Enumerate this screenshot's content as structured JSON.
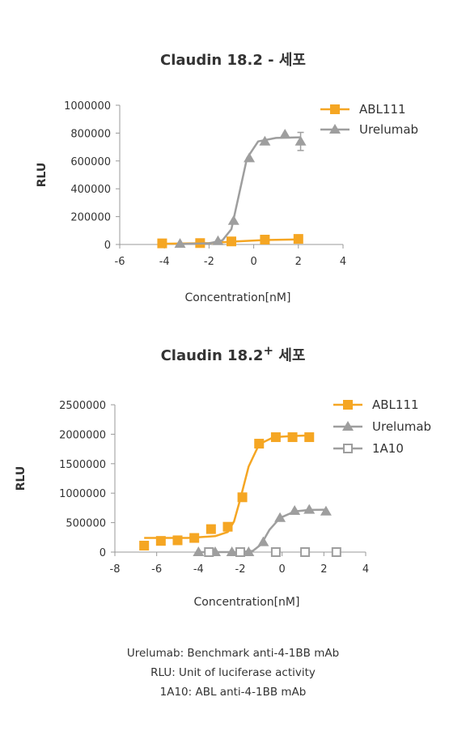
{
  "chart_data": [
    {
      "type": "line",
      "title": "Claudin 18.2 - 세포",
      "xlabel": "Concentration[nM]",
      "ylabel": "RLU",
      "xlim": [
        -6,
        4
      ],
      "ylim": [
        0,
        1000000
      ],
      "x_ticks": [
        "-6",
        "-4",
        "-2",
        "0",
        "2",
        "4"
      ],
      "y_ticks": [
        "0",
        "200000",
        "400000",
        "600000",
        "800000",
        "1000000"
      ],
      "legend_position": "top-right",
      "series": [
        {
          "name": "ABL111",
          "color": "#F5A623",
          "marker": "square",
          "points": [
            [
              -4.1,
              8000
            ],
            [
              -2.4,
              10000
            ],
            [
              -1.0,
              22000
            ],
            [
              0.5,
              35000
            ],
            [
              2.0,
              40000
            ]
          ],
          "fit": [
            [
              -4.1,
              5000
            ],
            [
              -2.0,
              10000
            ],
            [
              -0.8,
              22000
            ],
            [
              0.5,
              32000
            ],
            [
              2.0,
              36000
            ]
          ]
        },
        {
          "name": "Urelumab",
          "color": "#9E9E9E",
          "marker": "triangle",
          "points": [
            [
              -3.3,
              5000
            ],
            [
              -1.6,
              25000
            ],
            [
              -0.9,
              170000
            ],
            [
              -0.2,
              620000
            ],
            [
              0.5,
              740000
            ],
            [
              1.4,
              790000
            ],
            [
              2.1,
              740000
            ]
          ],
          "error": [
            null,
            null,
            null,
            null,
            null,
            null,
            65000
          ],
          "fit": [
            [
              -3.3,
              3000
            ],
            [
              -2.0,
              8000
            ],
            [
              -1.4,
              30000
            ],
            [
              -1.0,
              110000
            ],
            [
              -0.6,
              400000
            ],
            [
              -0.3,
              620000
            ],
            [
              0.2,
              740000
            ],
            [
              1.0,
              765000
            ],
            [
              2.1,
              770000
            ]
          ]
        }
      ]
    },
    {
      "type": "line",
      "title": "Claudin 18.2",
      "title_superscript": "+",
      "title_suffix": "세포",
      "xlabel": "Concentration[nM]",
      "ylabel": "RLU",
      "xlim": [
        -8,
        4
      ],
      "ylim": [
        0,
        2500000
      ],
      "x_ticks": [
        "-8",
        "-6",
        "-4",
        "-2",
        "0",
        "2",
        "4"
      ],
      "y_ticks": [
        "0",
        "500000",
        "1000000",
        "1500000",
        "2000000",
        "2500000"
      ],
      "legend_position": "top-right",
      "series": [
        {
          "name": "ABL111",
          "color": "#F5A623",
          "marker": "square",
          "points": [
            [
              -6.6,
              110000
            ],
            [
              -5.8,
              190000
            ],
            [
              -5.0,
              200000
            ],
            [
              -4.2,
              240000
            ],
            [
              -3.4,
              390000
            ],
            [
              -2.6,
              430000
            ],
            [
              -1.9,
              930000
            ],
            [
              -1.1,
              1840000
            ],
            [
              -0.3,
              1950000
            ],
            [
              0.5,
              1950000
            ],
            [
              1.3,
              1950000
            ]
          ],
          "fit": [
            [
              -6.6,
              240000
            ],
            [
              -4.5,
              240000
            ],
            [
              -3.2,
              270000
            ],
            [
              -2.6,
              340000
            ],
            [
              -2.3,
              520000
            ],
            [
              -2.0,
              900000
            ],
            [
              -1.6,
              1450000
            ],
            [
              -1.1,
              1830000
            ],
            [
              -0.4,
              1950000
            ],
            [
              0.5,
              1970000
            ],
            [
              1.3,
              1980000
            ]
          ]
        },
        {
          "name": "Urelumab",
          "color": "#9E9E9E",
          "marker": "triangle",
          "points": [
            [
              -4.0,
              0
            ],
            [
              -3.2,
              0
            ],
            [
              -2.4,
              0
            ],
            [
              -1.6,
              0
            ],
            [
              -0.9,
              170000
            ],
            [
              -0.1,
              580000
            ],
            [
              0.6,
              700000
            ],
            [
              1.3,
              720000
            ],
            [
              2.1,
              690000
            ]
          ],
          "fit": [
            [
              -4.0,
              0
            ],
            [
              -2.0,
              2000
            ],
            [
              -1.4,
              20000
            ],
            [
              -1.0,
              130000
            ],
            [
              -0.6,
              380000
            ],
            [
              -0.1,
              580000
            ],
            [
              0.6,
              690000
            ],
            [
              1.3,
              715000
            ],
            [
              2.1,
              720000
            ]
          ]
        },
        {
          "name": "1A10",
          "color": "#9E9E9E",
          "marker": "open-square",
          "points": [
            [
              -3.5,
              0
            ],
            [
              -2.0,
              0
            ],
            [
              -0.3,
              0
            ],
            [
              1.1,
              0
            ],
            [
              2.6,
              0
            ]
          ],
          "fit": []
        }
      ]
    }
  ],
  "footnotes": [
    "Urelumab: Benchmark anti-4-1BB mAb",
    "RLU: Unit of luciferase activity",
    "1A10: ABL anti-4-1BB mAb"
  ]
}
